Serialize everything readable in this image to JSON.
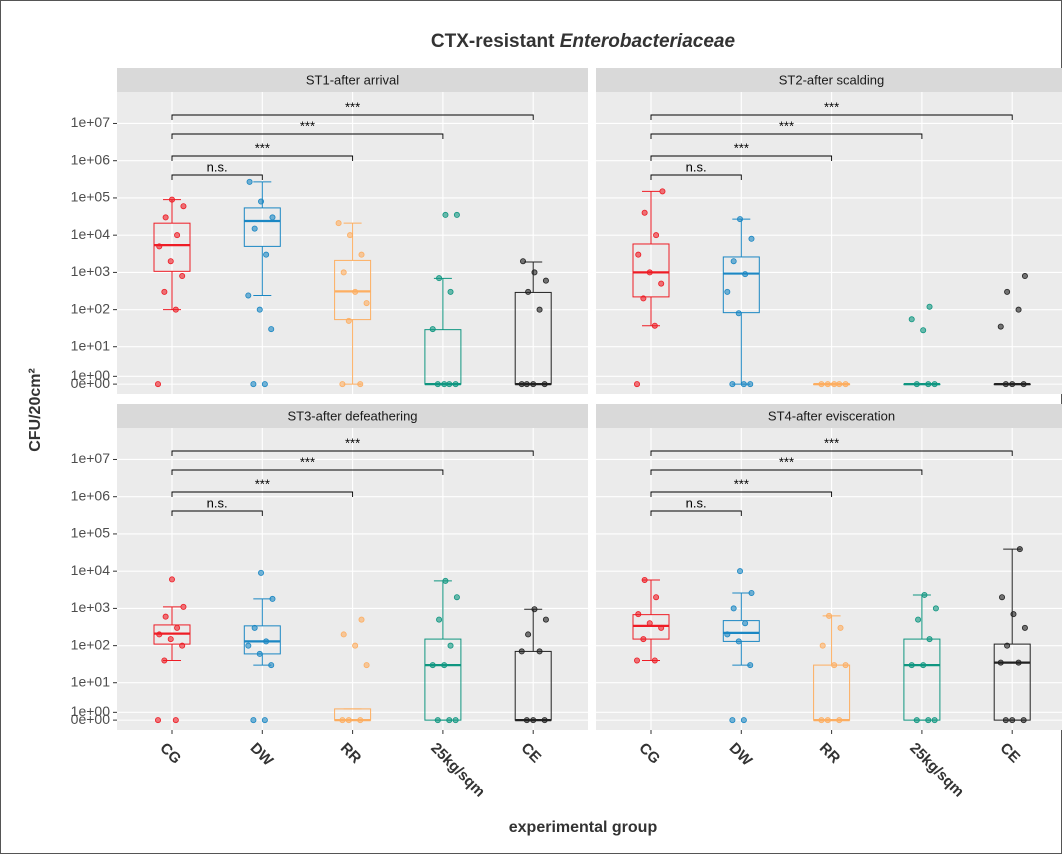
{
  "chart_data": {
    "type": "box",
    "title": [
      "CTX-resistant",
      "Enterobacteriaceae"
    ],
    "x_label": "experimental group",
    "y_label": "CFU/20cm²",
    "categories": [
      "CG",
      "DW",
      "RR",
      "25kg/sqm",
      "CE"
    ],
    "colors": [
      "#ee1c25",
      "#1b87c3",
      "#fdae61",
      "#0f9680",
      "#222222"
    ],
    "y_scale": "pseudo_log",
    "ylim": [
      -1.3,
      70000000
    ],
    "yticks": [
      {
        "value": 0,
        "label": "0e+00"
      },
      {
        "value": 1,
        "label": "1e+00"
      },
      {
        "value": 10,
        "label": "1e+01"
      },
      {
        "value": 100,
        "label": "1e+02"
      },
      {
        "value": 1000,
        "label": "1e+03"
      },
      {
        "value": 10000,
        "label": "1e+04"
      },
      {
        "value": 100000,
        "label": "1e+05"
      },
      {
        "value": 1000000,
        "label": "1e+06"
      },
      {
        "value": 10000000,
        "label": "1e+07"
      }
    ],
    "grid": true,
    "comparisons": [
      {
        "from": "CG",
        "to": "DW",
        "label": "n.s."
      },
      {
        "from": "CG",
        "to": "RR",
        "label": "***"
      },
      {
        "from": "CG",
        "to": "25kg/sqm",
        "label": "***"
      },
      {
        "from": "CG",
        "to": "CE",
        "label": "***"
      }
    ],
    "facets": [
      {
        "title": "ST1-after arrival",
        "boxes": [
          {
            "min": 100,
            "q1": 1070,
            "median": 5400,
            "q3": 21000,
            "max": 90000,
            "points": [
              0,
              100,
              300,
              800,
              2000,
              5000,
              10000,
              30000,
              60000,
              90000
            ]
          },
          {
            "min": 240,
            "q1": 5000,
            "median": 24000,
            "q3": 54000,
            "max": 270000,
            "points": [
              0,
              0,
              30,
              100,
              240,
              3000,
              15000,
              30000,
              80000,
              270000
            ]
          },
          {
            "min": 0,
            "q1": 54,
            "median": 310,
            "q3": 2100,
            "max": 21000,
            "points": [
              0,
              0,
              50,
              150,
              300,
              1000,
              3000,
              10000,
              21000
            ]
          },
          {
            "min": 0,
            "q1": 0,
            "median": 0,
            "q3": 29,
            "max": 690,
            "points": [
              0,
              0,
              0,
              0,
              30,
              300,
              700,
              35000,
              35000
            ]
          },
          {
            "min": 0,
            "q1": 0,
            "median": 0,
            "q3": 290,
            "max": 1900,
            "points": [
              0,
              0,
              0,
              0,
              100,
              300,
              600,
              1000,
              2000
            ]
          }
        ]
      },
      {
        "title": "ST2-after scalding",
        "boxes": [
          {
            "min": 37,
            "q1": 220,
            "median": 1000,
            "q3": 5800,
            "max": 150000,
            "points": [
              0,
              37,
              200,
              500,
              1000,
              3000,
              10000,
              40000,
              150000
            ]
          },
          {
            "min": 0,
            "q1": 83,
            "median": 930,
            "q3": 2600,
            "max": 27000,
            "points": [
              0,
              0,
              0,
              80,
              300,
              900,
              2000,
              8000,
              27000
            ]
          },
          {
            "min": 0,
            "q1": 0,
            "median": 0,
            "q3": 0,
            "max": 0,
            "points": [
              0,
              0,
              0,
              0,
              0
            ]
          },
          {
            "min": 0,
            "q1": 0,
            "median": 0,
            "q3": 0,
            "max": 0,
            "points": [
              0,
              0,
              0,
              28,
              55,
              120
            ]
          },
          {
            "min": 0,
            "q1": 0,
            "median": 0,
            "q3": 0,
            "max": 0,
            "points": [
              0,
              0,
              0,
              35,
              100,
              300,
              800
            ]
          }
        ]
      },
      {
        "title": "ST3-after defeathering",
        "boxes": [
          {
            "min": 40,
            "q1": 110,
            "median": 210,
            "q3": 360,
            "max": 1100,
            "points": [
              0,
              0,
              40,
              100,
              150,
              200,
              300,
              600,
              1100,
              6000
            ]
          },
          {
            "min": 30,
            "q1": 60,
            "median": 130,
            "q3": 340,
            "max": 1800,
            "points": [
              0,
              0,
              30,
              60,
              100,
              130,
              300,
              1800,
              9000
            ]
          },
          {
            "min": 0,
            "q1": 0,
            "median": 0,
            "q3": 1.5,
            "max": 1.5,
            "points": [
              0,
              0,
              0,
              30,
              100,
              200,
              500
            ]
          },
          {
            "min": 0,
            "q1": 0,
            "median": 30,
            "q3": 150,
            "max": 5500,
            "points": [
              0,
              0,
              0,
              30,
              30,
              100,
              500,
              2000,
              5500
            ]
          },
          {
            "min": 0,
            "q1": 0,
            "median": 0,
            "q3": 70,
            "max": 950,
            "points": [
              0,
              0,
              0,
              70,
              70,
              200,
              500,
              950
            ]
          }
        ]
      },
      {
        "title": "ST4-after evisceration",
        "boxes": [
          {
            "min": 40,
            "q1": 150,
            "median": 340,
            "q3": 680,
            "max": 5800,
            "points": [
              40,
              40,
              150,
              300,
              400,
              700,
              2000,
              5800
            ]
          },
          {
            "min": 30,
            "q1": 130,
            "median": 220,
            "q3": 470,
            "max": 2600,
            "points": [
              0,
              0,
              30,
              130,
              200,
              400,
              1000,
              2600,
              10000
            ]
          },
          {
            "min": 0,
            "q1": 0,
            "median": 0,
            "q3": 30,
            "max": 630,
            "points": [
              0,
              0,
              0,
              30,
              30,
              100,
              300,
              630
            ]
          },
          {
            "min": 0,
            "q1": 0,
            "median": 30,
            "q3": 150,
            "max": 2300,
            "points": [
              0,
              0,
              0,
              30,
              30,
              150,
              500,
              1000,
              2300
            ]
          },
          {
            "min": 0,
            "q1": 0,
            "median": 35,
            "q3": 110,
            "max": 39000,
            "points": [
              0,
              0,
              0,
              35,
              35,
              100,
              300,
              700,
              2000,
              39000
            ]
          }
        ]
      }
    ]
  }
}
